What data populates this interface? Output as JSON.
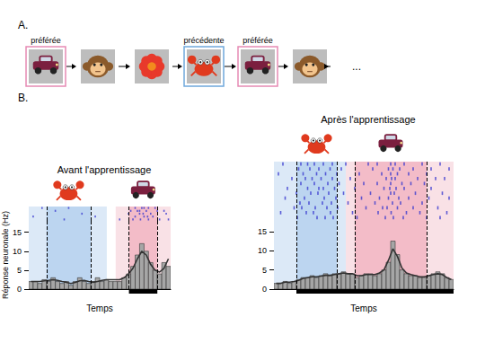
{
  "panel_labels": [
    "A.",
    "B."
  ],
  "sequence": {
    "items": [
      {
        "label": "préférée",
        "frame": "#e68ab4"
      },
      {
        "label": null
      },
      {
        "label": null
      },
      {
        "label": "précédente",
        "frame": "#6fa8dc"
      },
      {
        "label": "préférée",
        "frame": "#e68ab4"
      },
      {
        "label": null
      }
    ],
    "more": "..."
  },
  "chart_data": [
    {
      "type": "histogram",
      "title": "Avant l'apprentissage",
      "xlabel": "Temps",
      "ylabel": "Réponse neuronale (Hz)",
      "bins": [
        0,
        1,
        2,
        3,
        4,
        5,
        6,
        7,
        8,
        9,
        10,
        11,
        12,
        13,
        14,
        15,
        16,
        17,
        18,
        19,
        20,
        21,
        22,
        23,
        24,
        25,
        26,
        27,
        28,
        29,
        30,
        31,
        32
      ],
      "values": [
        2,
        2,
        1.5,
        2.5,
        2,
        3,
        2,
        1.5,
        2,
        1,
        2,
        3,
        2,
        1.5,
        2,
        3,
        2,
        2.5,
        2,
        2,
        2,
        3,
        4,
        6,
        9,
        12,
        10,
        7,
        5,
        4,
        7,
        6
      ],
      "color": "#a6a6a6",
      "series": [
        {
          "type": "line",
          "color": "#333333",
          "values": [
            2,
            2,
            2,
            2.2,
            2.3,
            2.5,
            2.3,
            2,
            1.8,
            1.5,
            1.8,
            2.2,
            2.3,
            2,
            1.8,
            2,
            2.3,
            2.5,
            2.5,
            2.5,
            2.5,
            3,
            4,
            5.5,
            8,
            10,
            9,
            6.5,
            5,
            4.5,
            5.5,
            8
          ]
        }
      ],
      "xlim": [
        0,
        32
      ],
      "ylim": [
        0,
        18
      ],
      "yticks": [
        0,
        5,
        10,
        15
      ],
      "tick_labels": "y",
      "grid": false,
      "backgrounds": [
        {
          "start": 0,
          "end": 17.6,
          "color": "#dce9f7"
        },
        {
          "start": 19.6,
          "end": 32,
          "color": "#f9e1e6"
        }
      ],
      "stimuli": [
        {
          "start": 4,
          "end": 14,
          "color": "#bcd5f0"
        },
        {
          "start": 22.6,
          "end": 29,
          "color": "#f3bcc8"
        }
      ],
      "event_bar": {
        "start": 22.6,
        "end": 29,
        "color": "#000000"
      },
      "raster": {
        "color": "#3a3acf",
        "trials": [
          [
            3,
            9,
            24,
            25.5,
            26,
            27,
            28.5
          ],
          [
            6,
            23,
            24.5,
            25,
            26.5,
            29,
            30.5
          ],
          [
            12,
            22.5,
            25,
            25.8,
            27.5,
            31
          ],
          [
            1,
            15,
            24,
            26,
            26.8,
            28
          ],
          [
            8,
            20.5,
            23.5,
            25.2,
            27,
            29.5,
            31.5
          ]
        ]
      }
    },
    {
      "type": "histogram",
      "title": "Après l'apprentissage",
      "xlabel": "Temps",
      "bins": [
        0,
        1,
        2,
        3,
        4,
        5,
        6,
        7,
        8,
        9,
        10,
        11,
        12,
        13,
        14,
        15,
        16,
        17,
        18,
        19,
        20,
        21,
        22,
        23,
        24,
        25,
        26,
        27,
        28,
        29,
        30,
        31,
        32,
        33,
        34,
        35,
        36,
        37,
        38,
        39,
        40
      ],
      "values": [
        1.5,
        1.5,
        2,
        1.5,
        2,
        2.5,
        3,
        3,
        3.5,
        3,
        3.5,
        4,
        3.5,
        4,
        4,
        4.5,
        4,
        4,
        3,
        3.5,
        4,
        4,
        3.5,
        4,
        5,
        7,
        12.5,
        9,
        5,
        4,
        3.5,
        3.5,
        3,
        3,
        3.5,
        4,
        4.5,
        4,
        3,
        2.5
      ],
      "color": "#a6a6a6",
      "series": [
        {
          "type": "line",
          "color": "#333333",
          "values": [
            1.5,
            1.5,
            1.8,
            1.8,
            2,
            2.3,
            2.8,
            3,
            3.2,
            3.2,
            3.4,
            3.6,
            3.6,
            3.8,
            4,
            4.2,
            4,
            4,
            3.5,
            3.5,
            3.8,
            3.8,
            3.8,
            4.2,
            5,
            7.5,
            10.5,
            8.5,
            5.5,
            4.2,
            3.8,
            3.5,
            3.2,
            3.2,
            3.5,
            3.8,
            4,
            3.8,
            3,
            2.5
          ]
        }
      ],
      "xlim": [
        0,
        40
      ],
      "ylim": [
        0,
        18
      ],
      "yticks": [
        0,
        5,
        10,
        15
      ],
      "tick_labels": "y",
      "grid": false,
      "backgrounds": [
        {
          "start": 0,
          "end": 16,
          "color": "#dce9f7"
        },
        {
          "start": 16,
          "end": 40,
          "color": "#f9e1e6"
        }
      ],
      "stimuli": [
        {
          "start": 5,
          "end": 14,
          "color": "#bcd5f0"
        },
        {
          "start": 18,
          "end": 34,
          "color": "#f3bcc8"
        }
      ],
      "event_bar": {
        "start": 5,
        "end": 40,
        "color": "#000000"
      },
      "raster": {
        "color": "#3a3acf",
        "trials": [
          [
            2,
            6,
            7.5,
            9,
            11,
            13,
            16,
            21,
            23,
            26,
            27,
            29,
            33,
            37
          ],
          [
            5.5,
            8,
            10,
            12.5,
            15,
            22,
            25.5,
            26.5,
            28,
            31,
            35,
            39
          ],
          [
            1,
            6.5,
            9.5,
            11.5,
            14,
            19,
            24,
            26,
            27.5,
            30,
            34
          ],
          [
            4,
            7,
            8.5,
            10.5,
            13,
            17,
            25,
            26.2,
            27,
            32,
            36,
            38
          ],
          [
            6,
            9,
            12,
            14.5,
            20,
            23,
            26,
            28.5,
            30.5,
            33.5
          ],
          [
            3,
            7.5,
            10,
            11,
            13.5,
            18,
            24.5,
            25.8,
            27.2,
            29,
            35
          ],
          [
            5,
            8.2,
            9.8,
            12.2,
            15.5,
            21.5,
            26,
            26.8,
            31.5,
            37.5
          ],
          [
            2.5,
            6.8,
            11.2,
            13.8,
            19.5,
            23.5,
            25.5,
            27.8,
            30,
            34.5,
            39
          ],
          [
            5.8,
            7.8,
            10.8,
            12.8,
            16.5,
            22.5,
            26.4,
            28.2,
            33
          ],
          [
            4.5,
            6.2,
            9.2,
            11.8,
            14.2,
            20.5,
            24.2,
            25.2,
            27.5,
            31,
            36.5
          ],
          [
            1.5,
            7.2,
            8.8,
            12.6,
            17.5,
            23.2,
            26.1,
            29.5,
            32.5,
            38.5
          ],
          [
            5.2,
            9.6,
            11.4,
            13.2,
            18.5,
            24.8,
            26.6,
            28.8,
            34,
            37
          ]
        ]
      }
    }
  ]
}
